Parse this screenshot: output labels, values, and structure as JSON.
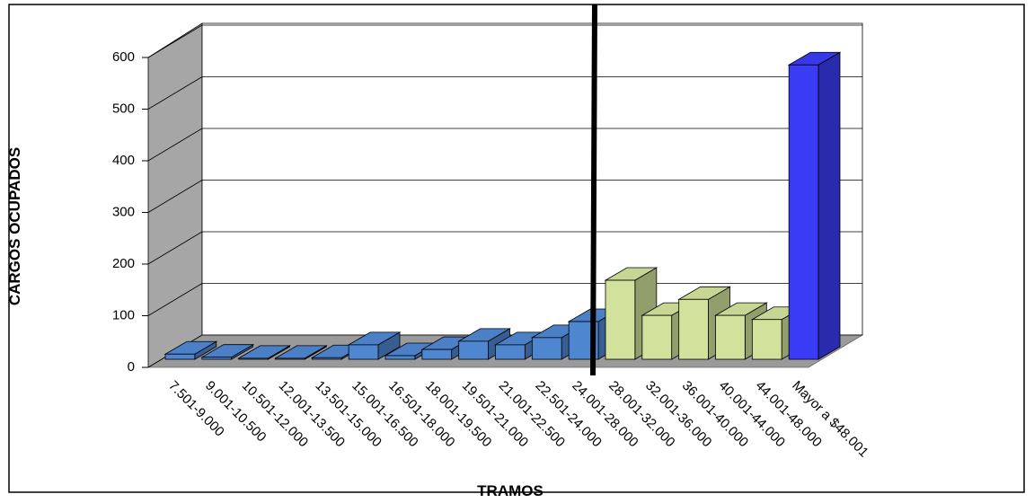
{
  "chart_data": {
    "type": "bar3d",
    "x_label": "TRAMOS",
    "y_label": "CARGOS OCUPADOS",
    "categories": [
      "7.501-9.000",
      "9.001-10.500",
      "10.501-12.000",
      "12.001-13.500",
      "13.501-15.000",
      "15.001-16.500",
      "16.501-18.000",
      "18.001-19.500",
      "19.501-21.000",
      "21.001-22.500",
      "22.501-24.000",
      "24.001-28.000",
      "28.001-32.000",
      "32.001-36.000",
      "36.001-40.000",
      "40.001-44.000",
      "44.001-48.000",
      "Mayor a $48.001"
    ],
    "values": [
      10,
      4,
      2,
      2,
      3,
      28,
      7,
      19,
      35,
      28,
      42,
      73,
      153,
      85,
      116,
      85,
      77,
      570
    ],
    "colors": [
      "#4f86d0",
      "#4f86d0",
      "#4f86d0",
      "#4f86d0",
      "#4f86d0",
      "#4f86d0",
      "#4f86d0",
      "#4f86d0",
      "#4f86d0",
      "#4f86d0",
      "#4f86d0",
      "#4f86d0",
      "#d2e19b",
      "#d2e19b",
      "#d2e19b",
      "#d2e19b",
      "#d2e19b",
      "#3a3cf5"
    ],
    "ylim": [
      0,
      600
    ],
    "yticks": [
      0,
      100,
      200,
      300,
      400,
      500,
      600
    ],
    "grid": true
  }
}
